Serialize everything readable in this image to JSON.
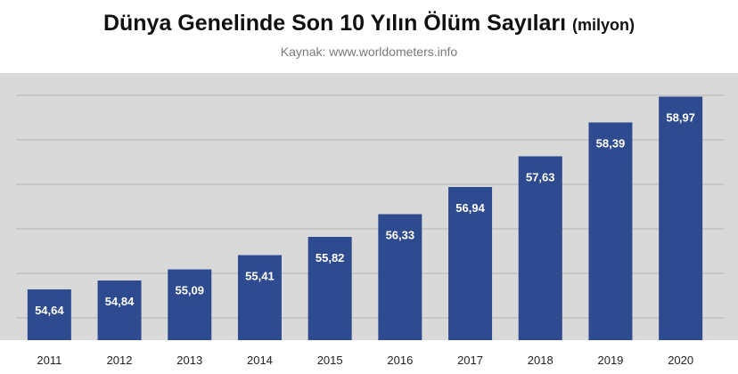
{
  "header": {
    "title": "Dünya Genelinde Son 10 Yılın Ölüm Sayıları",
    "title_unit": "(milyon)",
    "source": "Kaynak: www.worldometers.info"
  },
  "chart_data": {
    "type": "bar",
    "title": "Dünya Genelinde Son 10 Yılın Ölüm Sayıları (milyon)",
    "subtitle": "Kaynak: www.worldometers.info",
    "categories": [
      "2011",
      "2012",
      "2013",
      "2014",
      "2015",
      "2016",
      "2017",
      "2018",
      "2019",
      "2020"
    ],
    "values": [
      54.64,
      54.84,
      55.09,
      55.41,
      55.82,
      56.33,
      56.94,
      57.63,
      58.39,
      58.97
    ],
    "data_labels": [
      "54,64",
      "54,84",
      "55,09",
      "55,41",
      "55,82",
      "56,33",
      "56,94",
      "57,63",
      "58,39",
      "58,97"
    ],
    "xlabel": "",
    "ylabel": "",
    "ylim": [
      53.5,
      59.5
    ],
    "grid": true,
    "legend": "none",
    "colors": {
      "bar": "#2f4b8f",
      "background": "#d9d9d9",
      "gridline": "#bdbdbd",
      "data_label": "#ffffff"
    }
  }
}
